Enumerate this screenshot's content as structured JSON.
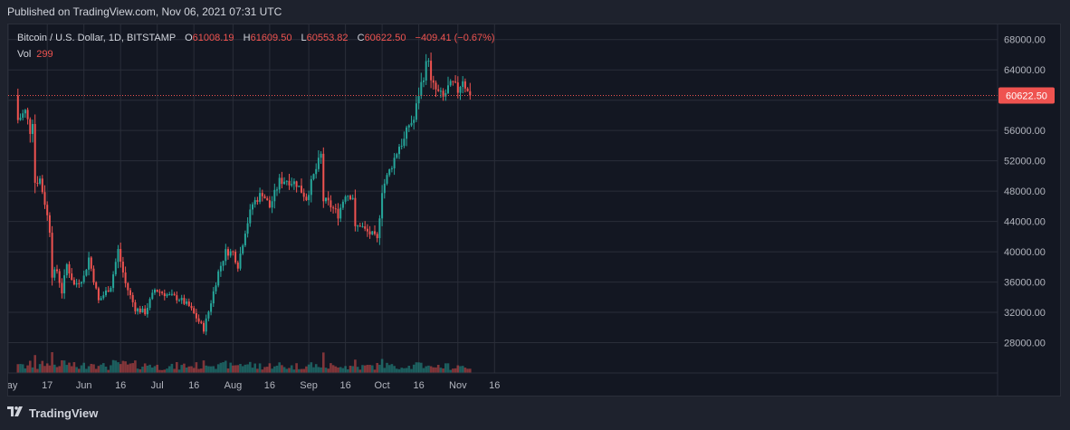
{
  "published": "Published on TradingView.com, Nov 06, 2021 07:31 UTC",
  "legend": {
    "symbol": "Bitcoin / U.S. Dollar, 1D, BITSTAMP",
    "open_label": "O",
    "open": "61008.19",
    "high_label": "H",
    "high": "61609.50",
    "low_label": "L",
    "low": "60553.82",
    "close_label": "C",
    "close": "60622.50",
    "change": "−409.41 (−0.67%)",
    "vol_label": "Vol",
    "vol": "299"
  },
  "last_price_label": "60622.50",
  "footer": {
    "brand": "TradingView",
    "logo_icon": "tradingview-logo-icon"
  },
  "colors": {
    "up": "#26a69a",
    "down": "#ef5350",
    "background": "#131722",
    "grid": "#2a2e39",
    "text": "#b2b5be"
  },
  "chart_data": {
    "type": "candlestick",
    "title": "Bitcoin / U.S. Dollar, 1D, BITSTAMP",
    "ylim": [
      24000,
      70000
    ],
    "y_ticks": [
      "28000.00",
      "32000.00",
      "36000.00",
      "40000.00",
      "44000.00",
      "48000.00",
      "52000.00",
      "56000.00",
      "60000.00",
      "64000.00",
      "68000.00"
    ],
    "x_ticks": [
      "May",
      "17",
      "Jun",
      "16",
      "Jul",
      "16",
      "Aug",
      "16",
      "Sep",
      "16",
      "Oct",
      "16",
      "Nov",
      "16"
    ],
    "last_close": 60622.5,
    "anchors": [
      [
        "2021-05-05",
        57400
      ],
      [
        "2021-05-08",
        58500
      ],
      [
        "2021-05-10",
        56000
      ],
      [
        "2021-05-11",
        57400
      ],
      [
        "2021-05-12",
        49200
      ],
      [
        "2021-05-14",
        49600
      ],
      [
        "2021-05-16",
        46500
      ],
      [
        "2021-05-18",
        42900
      ],
      [
        "2021-05-19",
        37000
      ],
      [
        "2021-05-21",
        37500
      ],
      [
        "2021-05-23",
        34700
      ],
      [
        "2021-05-25",
        38300
      ],
      [
        "2021-05-28",
        35600
      ],
      [
        "2021-06-01",
        36700
      ],
      [
        "2021-06-03",
        39200
      ],
      [
        "2021-06-07",
        33500
      ],
      [
        "2021-06-12",
        35500
      ],
      [
        "2021-06-15",
        40200
      ],
      [
        "2021-06-18",
        35800
      ],
      [
        "2021-06-22",
        32500
      ],
      [
        "2021-06-26",
        32000
      ],
      [
        "2021-06-30",
        35000
      ],
      [
        "2021-07-06",
        34200
      ],
      [
        "2021-07-10",
        33800
      ],
      [
        "2021-07-14",
        32800
      ],
      [
        "2021-07-20",
        29800
      ],
      [
        "2021-07-22",
        32100
      ],
      [
        "2021-07-26",
        37300
      ],
      [
        "2021-07-29",
        40000
      ],
      [
        "2021-08-01",
        39900
      ],
      [
        "2021-08-03",
        38200
      ],
      [
        "2021-08-06",
        42800
      ],
      [
        "2021-08-09",
        46300
      ],
      [
        "2021-08-13",
        47800
      ],
      [
        "2021-08-16",
        45900
      ],
      [
        "2021-08-20",
        49300
      ],
      [
        "2021-08-23",
        49500
      ],
      [
        "2021-08-27",
        49000
      ],
      [
        "2021-08-31",
        47100
      ],
      [
        "2021-09-03",
        50000
      ],
      [
        "2021-09-06",
        52700
      ],
      [
        "2021-09-07",
        46800
      ],
      [
        "2021-09-09",
        46400
      ],
      [
        "2021-09-13",
        44900
      ],
      [
        "2021-09-16",
        47700
      ],
      [
        "2021-09-19",
        47300
      ],
      [
        "2021-09-20",
        43000
      ],
      [
        "2021-09-22",
        43600
      ],
      [
        "2021-09-24",
        42800
      ],
      [
        "2021-09-27",
        42200
      ],
      [
        "2021-09-29",
        41500
      ],
      [
        "2021-10-01",
        48200
      ],
      [
        "2021-10-05",
        51500
      ],
      [
        "2021-10-08",
        54000
      ],
      [
        "2021-10-10",
        54700
      ],
      [
        "2021-10-12",
        56800
      ],
      [
        "2021-10-14",
        57400
      ],
      [
        "2021-10-16",
        60900
      ],
      [
        "2021-10-20",
        65800
      ],
      [
        "2021-10-21",
        62200
      ],
      [
        "2021-10-24",
        60900
      ],
      [
        "2021-10-26",
        60300
      ],
      [
        "2021-10-28",
        61600
      ],
      [
        "2021-10-30",
        62000
      ],
      [
        "2021-11-01",
        61300
      ],
      [
        "2021-11-03",
        62900
      ],
      [
        "2021-11-05",
        61000
      ],
      [
        "2021-11-06",
        60622.5
      ]
    ]
  }
}
